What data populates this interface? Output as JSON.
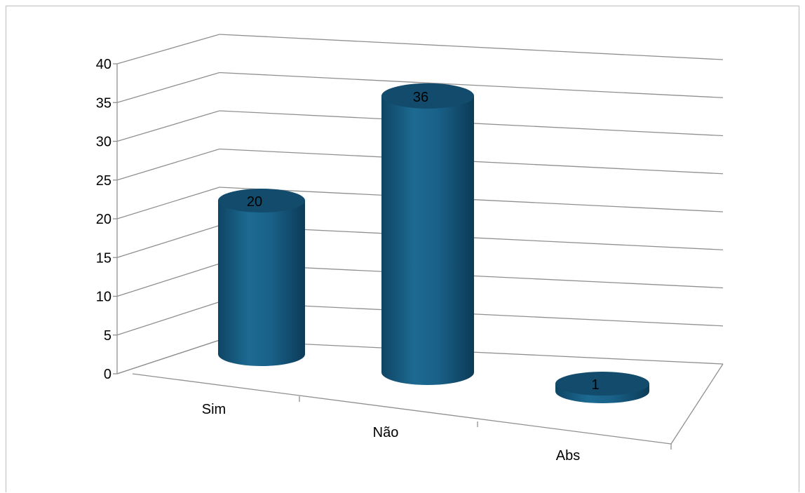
{
  "chart_data": {
    "type": "bar",
    "style": "3d-cylinder",
    "title": "",
    "xlabel": "",
    "ylabel": "",
    "categories": [
      "Sim",
      "Não",
      "Abs"
    ],
    "values": [
      20,
      36,
      1
    ],
    "data_labels": [
      "20",
      "36",
      "1"
    ],
    "ylim": [
      0,
      40
    ],
    "yticks": [
      "0",
      "5",
      "10",
      "15",
      "20",
      "25",
      "30",
      "35",
      "40"
    ],
    "grid": true,
    "legend": "none",
    "bar_color": "#1a5f85",
    "bar_top_color": "#124b6b",
    "grid_color": "#909090"
  }
}
